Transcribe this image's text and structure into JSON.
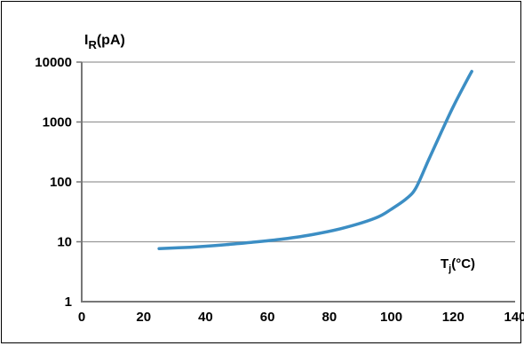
{
  "chart_data": {
    "type": "line",
    "xlabel": {
      "main": "T",
      "sub": "j",
      "rest": "(°C)"
    },
    "ylabel": {
      "main": "I",
      "sub": "R",
      "rest": "(pA)"
    },
    "y_scale": "log",
    "xlim": [
      0,
      140
    ],
    "ylim": [
      1,
      10000
    ],
    "x_ticks": [
      "0",
      "20",
      "40",
      "60",
      "80",
      "100",
      "120",
      "140"
    ],
    "y_ticks": [
      "1",
      "10",
      "100",
      "1000",
      "10000"
    ],
    "grid": "horizontal",
    "series": [
      {
        "color": "#3c8ec4",
        "x": [
          25,
          35,
          45,
          55,
          65,
          75,
          85,
          95,
          100,
          105,
          108,
          112,
          116,
          120,
          124,
          126
        ],
        "y": [
          7.7,
          8.1,
          8.8,
          9.8,
          11.1,
          13.3,
          17.2,
          25,
          35,
          53,
          80,
          230,
          650,
          1800,
          4500,
          7000
        ]
      }
    ]
  }
}
